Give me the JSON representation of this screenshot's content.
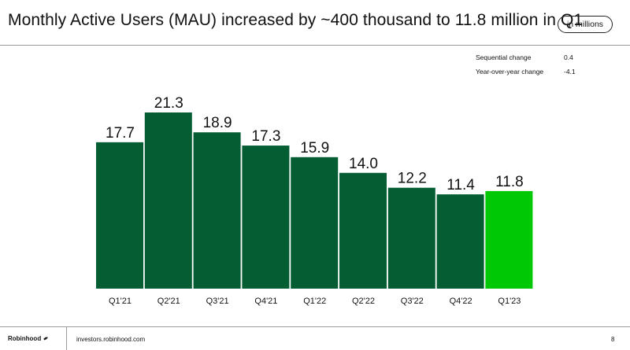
{
  "header": {
    "title": "Monthly Active Users (MAU) increased by ~400 thousand to 11.8 million in Q1",
    "unit_badge": "in millions"
  },
  "stats": [
    {
      "label": "Sequential change",
      "value": "0.4"
    },
    {
      "label": "Year-over-year change",
      "value": "-4.1"
    }
  ],
  "chart_data": {
    "type": "bar",
    "title": "",
    "xlabel": "",
    "ylabel": "",
    "categories": [
      "Q1'21",
      "Q2'21",
      "Q3'21",
      "Q4'21",
      "Q1'22",
      "Q2'22",
      "Q3'22",
      "Q4'22",
      "Q1'23"
    ],
    "values": [
      17.7,
      21.3,
      18.9,
      17.3,
      15.9,
      14.0,
      12.2,
      11.4,
      11.8
    ],
    "value_labels": [
      "17.7",
      "21.3",
      "18.9",
      "17.3",
      "15.9",
      "14.0",
      "12.2",
      "11.4",
      "11.8"
    ],
    "ylim": [
      0,
      21.3
    ],
    "grid": false,
    "colors": {
      "default": "#055d33",
      "highlight": "#00c805"
    },
    "highlight_index": 8
  },
  "footer": {
    "brand": "Robinhood",
    "brand_icon": "feather-icon",
    "site": "investors.robinhood.com",
    "page": "8"
  }
}
